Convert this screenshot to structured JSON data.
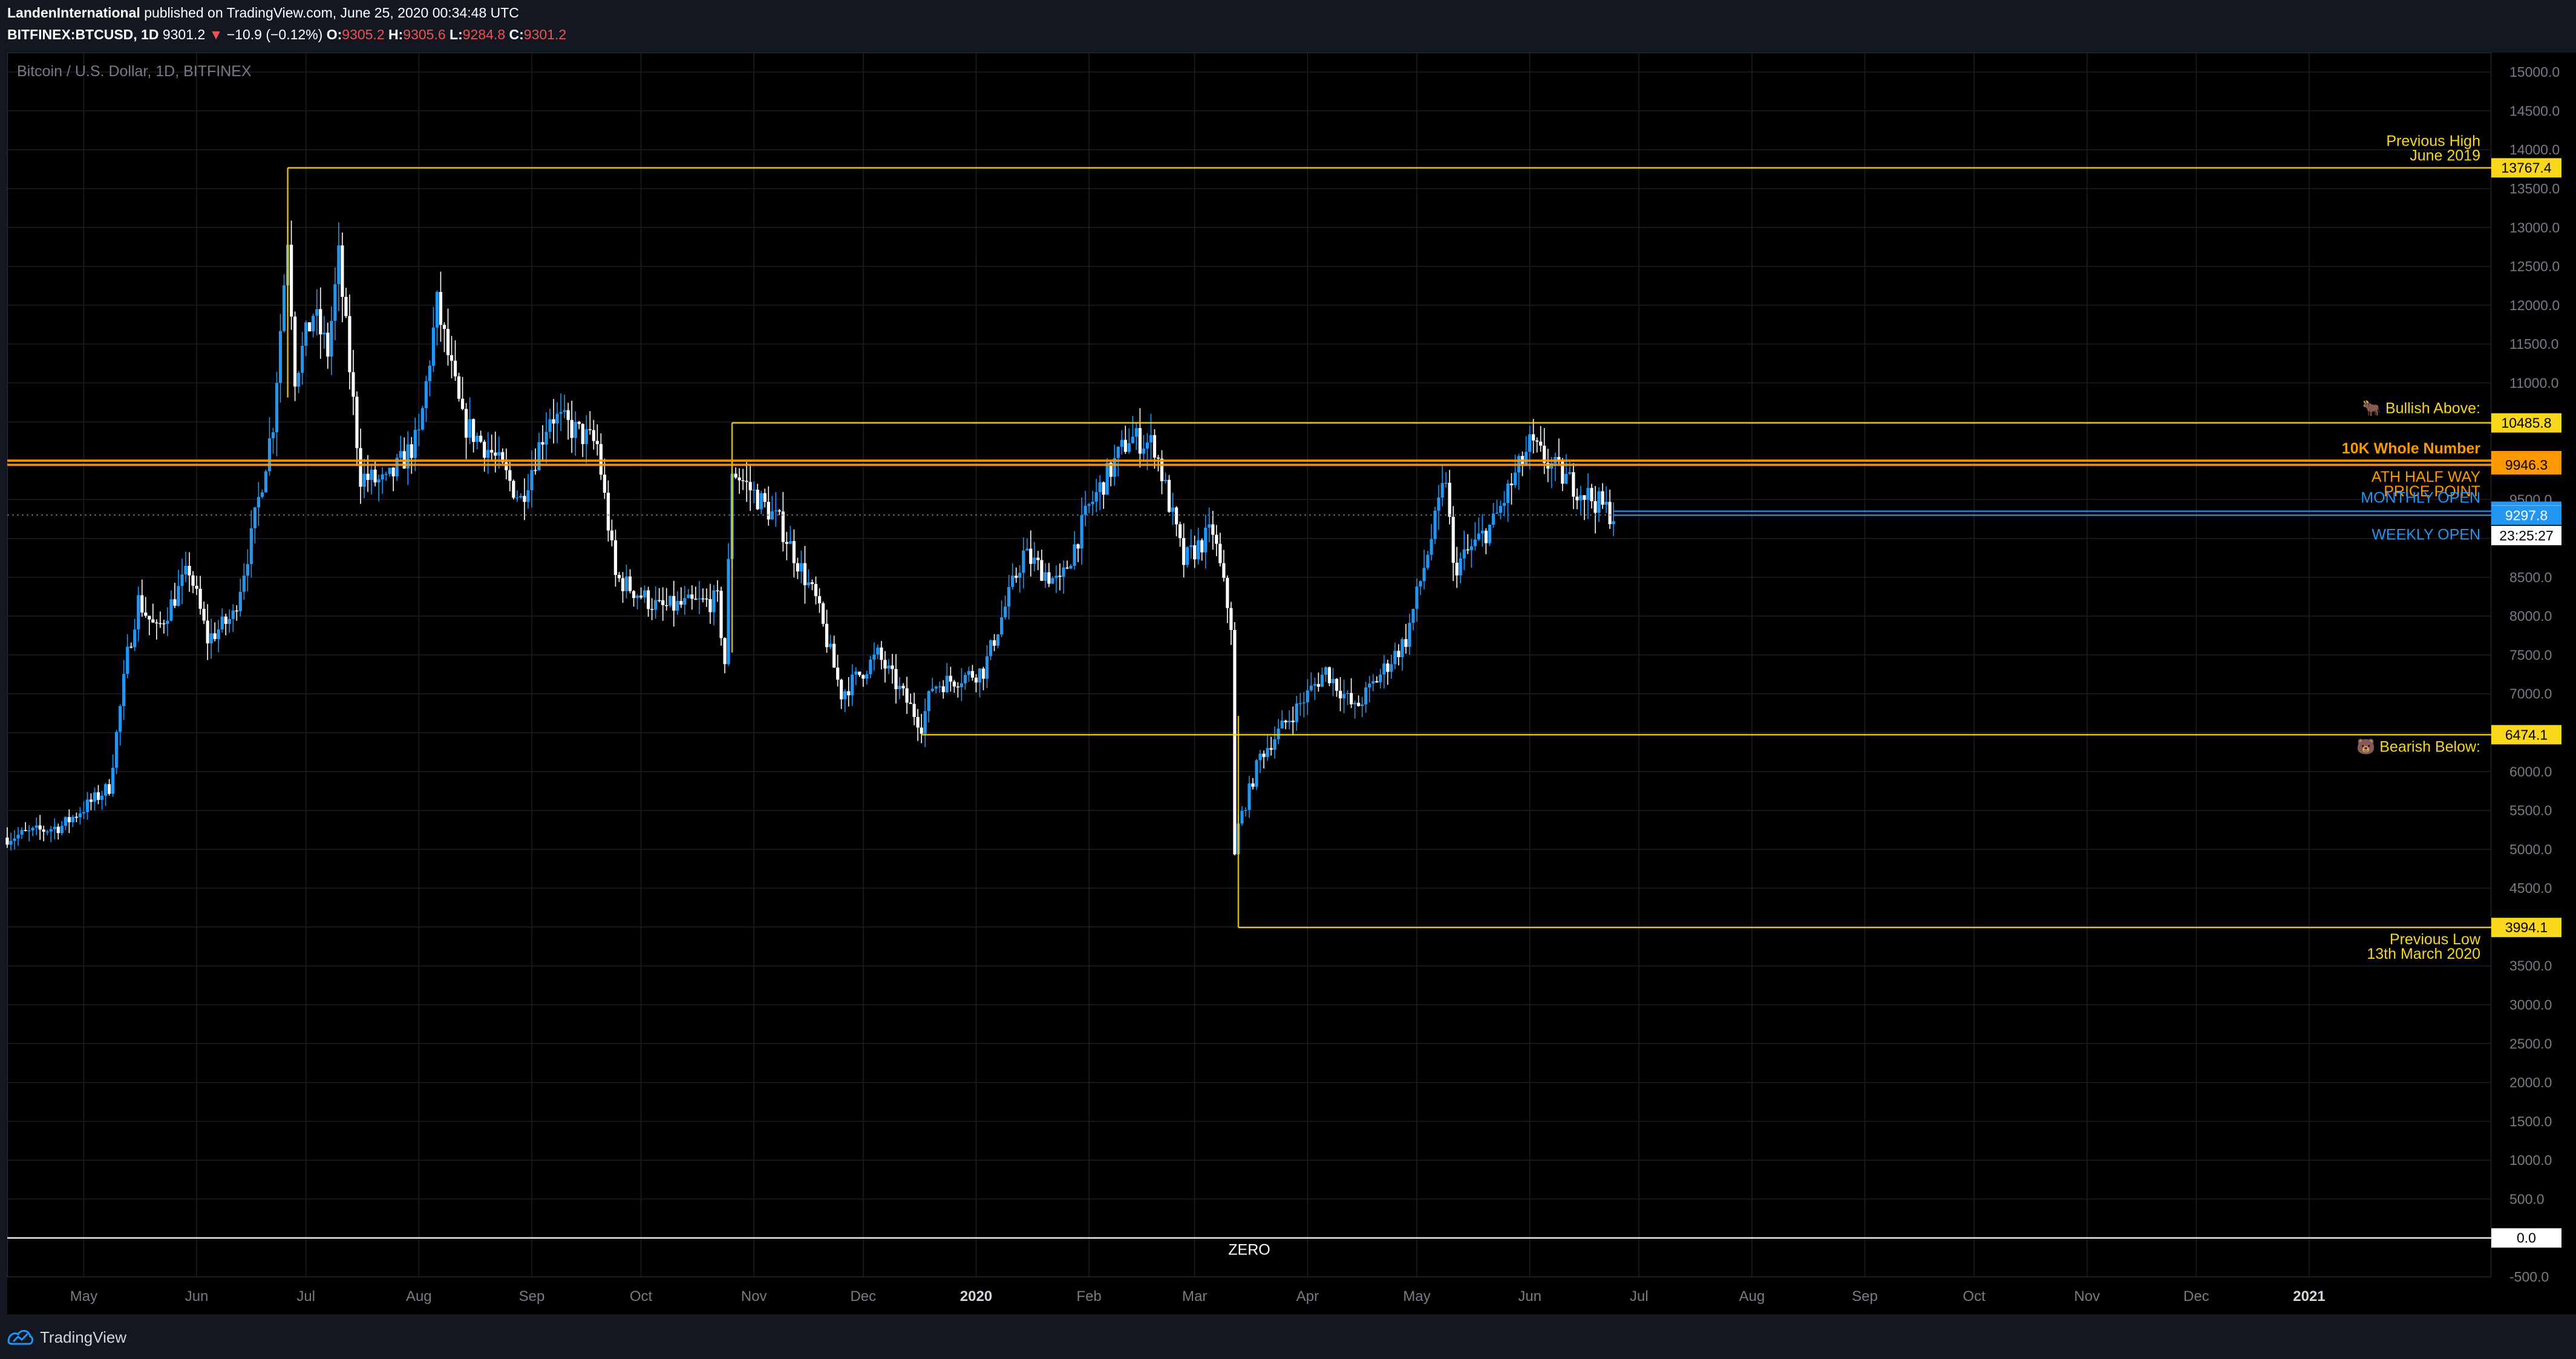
{
  "header": {
    "author": "LandenInternational",
    "published": "published on TradingView.com, June 25, 2020 00:34:48 UTC",
    "symbol": "BITFINEX:BTCUSD, 1D",
    "last": "9301.2",
    "arrow": "▼",
    "change": "−10.9 (−0.12%)",
    "o_label": "O:",
    "o_value": "9305.2",
    "h_label": "H:",
    "h_value": "9305.6",
    "l_label": "L:",
    "l_value": "9284.8",
    "c_label": "C:",
    "c_value": "9301.2"
  },
  "legend": {
    "title": "Bitcoin / U.S. Dollar, 1D, BITFINEX"
  },
  "footer": {
    "brand": "TradingView",
    "brand_icon": "tradingview-logo-icon"
  },
  "colors": {
    "background": "#000000",
    "chrome": "#131722",
    "up": "#2196f3",
    "down": "#ffffff",
    "yellow": "#f9d71c",
    "orange": "#ff9800",
    "blue": "#2196f3",
    "grid": "#1c1f26"
  },
  "chart_data": {
    "type": "candlestick",
    "title": "Bitcoin / U.S. Dollar, 1D, BITFINEX",
    "ylim": [
      -500,
      15250
    ],
    "y_ticks": [
      15000,
      14500,
      14000,
      13500,
      13000,
      12500,
      12000,
      11500,
      11000,
      10500,
      10000,
      9500,
      9000,
      8500,
      8000,
      7500,
      7000,
      6500,
      6000,
      5500,
      5000,
      4500,
      4000,
      3500,
      3000,
      2500,
      2000,
      1500,
      1000,
      500,
      0,
      -500
    ],
    "y_tick_labels": [
      "15000.0",
      "14500.0",
      "14000.0",
      "13500.0",
      "13000.0",
      "12500.0",
      "12000.0",
      "11500.0",
      "11000.0",
      "10500.0",
      "10000.0",
      "9500.0",
      "9000.0",
      "8500.0",
      "8000.0",
      "7500.0",
      "7000.0",
      "6500.0",
      "6000.0",
      "5500.0",
      "5000.0",
      "4500.0",
      "4000.0",
      "3500.0",
      "3000.0",
      "2500.0",
      "2000.0",
      "1500.0",
      "1000.0",
      "500.0",
      "",
      "-500.0"
    ],
    "x_range": [
      "2019-04-10",
      "2021-02-20"
    ],
    "x_ticks": [
      {
        "date": "2019-05-01",
        "label": "May"
      },
      {
        "date": "2019-06-01",
        "label": "Jun"
      },
      {
        "date": "2019-07-01",
        "label": "Jul"
      },
      {
        "date": "2019-08-01",
        "label": "Aug"
      },
      {
        "date": "2019-09-01",
        "label": "Sep"
      },
      {
        "date": "2019-10-01",
        "label": "Oct"
      },
      {
        "date": "2019-11-01",
        "label": "Nov"
      },
      {
        "date": "2019-12-01",
        "label": "Dec"
      },
      {
        "date": "2020-01-01",
        "label": "2020"
      },
      {
        "date": "2020-02-01",
        "label": "Feb"
      },
      {
        "date": "2020-03-01",
        "label": "Mar"
      },
      {
        "date": "2020-04-01",
        "label": "Apr"
      },
      {
        "date": "2020-05-01",
        "label": "May"
      },
      {
        "date": "2020-06-01",
        "label": "Jun"
      },
      {
        "date": "2020-07-01",
        "label": "Jul"
      },
      {
        "date": "2020-08-01",
        "label": "Aug"
      },
      {
        "date": "2020-09-01",
        "label": "Sep"
      },
      {
        "date": "2020-10-01",
        "label": "Oct"
      },
      {
        "date": "2020-11-01",
        "label": "Nov"
      },
      {
        "date": "2020-12-01",
        "label": "Dec"
      },
      {
        "date": "2021-01-01",
        "label": "2021"
      }
    ],
    "close_path": [
      [
        "2019-04-10",
        5150
      ],
      [
        "2019-04-25",
        5300
      ],
      [
        "2019-05-08",
        5800
      ],
      [
        "2019-05-13",
        7500
      ],
      [
        "2019-05-16",
        8200
      ],
      [
        "2019-05-21",
        7800
      ],
      [
        "2019-05-30",
        8600
      ],
      [
        "2019-06-04",
        7700
      ],
      [
        "2019-06-11",
        8000
      ],
      [
        "2019-06-16",
        9000
      ],
      [
        "2019-06-22",
        10500
      ],
      [
        "2019-06-26",
        12900
      ],
      [
        "2019-06-28",
        11100
      ],
      [
        "2019-07-03",
        11900
      ],
      [
        "2019-07-07",
        11400
      ],
      [
        "2019-07-10",
        12600
      ],
      [
        "2019-07-16",
        9800
      ],
      [
        "2019-07-23",
        9700
      ],
      [
        "2019-08-01",
        10300
      ],
      [
        "2019-08-06",
        12000
      ],
      [
        "2019-08-13",
        10500
      ],
      [
        "2019-08-21",
        10100
      ],
      [
        "2019-08-29",
        9500
      ],
      [
        "2019-09-06",
        10600
      ],
      [
        "2019-09-19",
        10200
      ],
      [
        "2019-09-24",
        8500
      ],
      [
        "2019-10-06",
        8100
      ],
      [
        "2019-10-22",
        8200
      ],
      [
        "2019-10-24",
        7400
      ],
      [
        "2019-10-26",
        9900
      ],
      [
        "2019-11-08",
        9200
      ],
      [
        "2019-11-18",
        8200
      ],
      [
        "2019-11-25",
        7000
      ],
      [
        "2019-12-05",
        7500
      ],
      [
        "2019-12-17",
        6600
      ],
      [
        "2019-12-20",
        7100
      ],
      [
        "2020-01-03",
        7300
      ],
      [
        "2020-01-14",
        8800
      ],
      [
        "2020-01-24",
        8400
      ],
      [
        "2020-02-01",
        9400
      ],
      [
        "2020-02-12",
        10300
      ],
      [
        "2020-02-19",
        10200
      ],
      [
        "2020-02-27",
        8700
      ],
      [
        "2020-03-06",
        9100
      ],
      [
        "2020-03-11",
        7900
      ],
      [
        "2020-03-12",
        4900
      ],
      [
        "2020-03-13",
        5300
      ],
      [
        "2020-03-19",
        6200
      ],
      [
        "2020-04-06",
        7300
      ],
      [
        "2020-04-14",
        6800
      ],
      [
        "2020-04-28",
        7700
      ],
      [
        "2020-05-06",
        9200
      ],
      [
        "2020-05-09",
        9800
      ],
      [
        "2020-05-11",
        8600
      ],
      [
        "2020-05-22",
        9200
      ],
      [
        "2020-06-01",
        10200
      ],
      [
        "2020-06-10",
        9800
      ],
      [
        "2020-06-24",
        9301
      ]
    ],
    "levels": [
      {
        "name": "previous-high",
        "value": 13767.4,
        "label": "13767.4",
        "text1": "Previous High",
        "text2": "June 2019",
        "color": "yellow",
        "start": "2019-06-26"
      },
      {
        "name": "bullish-above",
        "value": 10485.8,
        "label": "10485.8",
        "text1": "🐂 Bullish Above:",
        "color": "yellow",
        "start": "2019-10-26"
      },
      {
        "name": "10k-whole-number",
        "value": 10000.0,
        "label": "10000.0",
        "text1": "10K Whole Number",
        "color": "orange",
        "start": "2019-04-10"
      },
      {
        "name": "ath-half-way",
        "value": 9946.3,
        "label": "9946.3",
        "text1": "ATH HALF WAY",
        "text2": "PRICE POINT",
        "color": "orange",
        "start": "2019-04-10"
      },
      {
        "name": "monthly-open",
        "value": 9349.8,
        "label": "9349.8",
        "text1": "MONTHLY OPEN",
        "color": "blue",
        "start": "2020-06-24"
      },
      {
        "name": "last-price",
        "value": 9301.2,
        "label": "9301.2",
        "sublabel": "23:25:27",
        "color": "white"
      },
      {
        "name": "weekly-open",
        "value": 9297.8,
        "label": "9297.8",
        "text1": "WEEKLY OPEN",
        "color": "blue",
        "start": "2020-06-24"
      },
      {
        "name": "bearish-below",
        "value": 6474.1,
        "label": "6474.1",
        "text1": "🐻 Bearish Below:",
        "color": "yellow",
        "start": "2019-12-17"
      },
      {
        "name": "previous-low",
        "value": 3994.1,
        "label": "3994.1",
        "text1": "Previous Low",
        "text2": "13th March 2020",
        "color": "yellow",
        "start": "2020-03-13"
      },
      {
        "name": "zero",
        "value": 0.0,
        "label": "0.0",
        "text1": "ZERO",
        "color": "white",
        "start": "2019-04-10"
      }
    ]
  }
}
